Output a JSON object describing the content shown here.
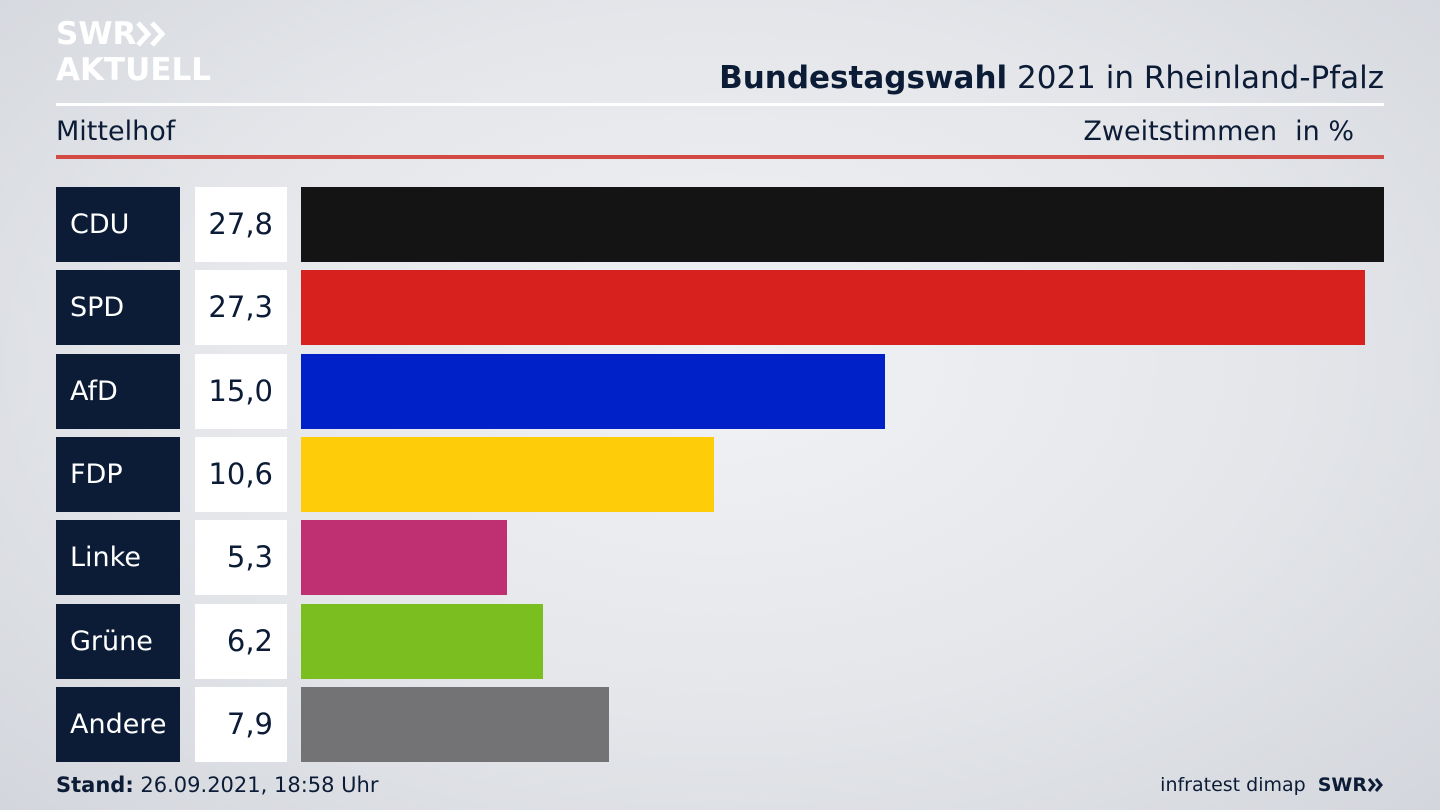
{
  "logo": {
    "line1": "SWR",
    "line2": "AKTUELL",
    "icon": "double-chevron-icon"
  },
  "header": {
    "title_bold": "Bundestagswahl",
    "title_rest": " 2021 in Rheinland-Pfalz",
    "location": "Mittelhof",
    "measure": "Zweitstimmen",
    "unit": "in %"
  },
  "chart_data": {
    "type": "bar",
    "orientation": "horizontal",
    "categories": [
      "CDU",
      "SPD",
      "AfD",
      "FDP",
      "Linke",
      "Grüne",
      "Andere"
    ],
    "values": [
      27.8,
      27.3,
      15.0,
      10.6,
      5.3,
      6.2,
      7.9
    ],
    "value_labels": [
      "27,8",
      "27,3",
      "15,0",
      "10,6",
      "5,3",
      "6,2",
      "7,9"
    ],
    "colors": [
      "#141414",
      "#d7211f",
      "#0021c8",
      "#ffcc09",
      "#bf3073",
      "#7abf1f",
      "#737375"
    ],
    "xlim": [
      0,
      27.8
    ],
    "grid": false
  },
  "footer": {
    "stand_label": "Stand:",
    "stand_value": " 26.09.2021, 18:58 Uhr",
    "source": "infratest dimap",
    "brand": "SWR"
  }
}
